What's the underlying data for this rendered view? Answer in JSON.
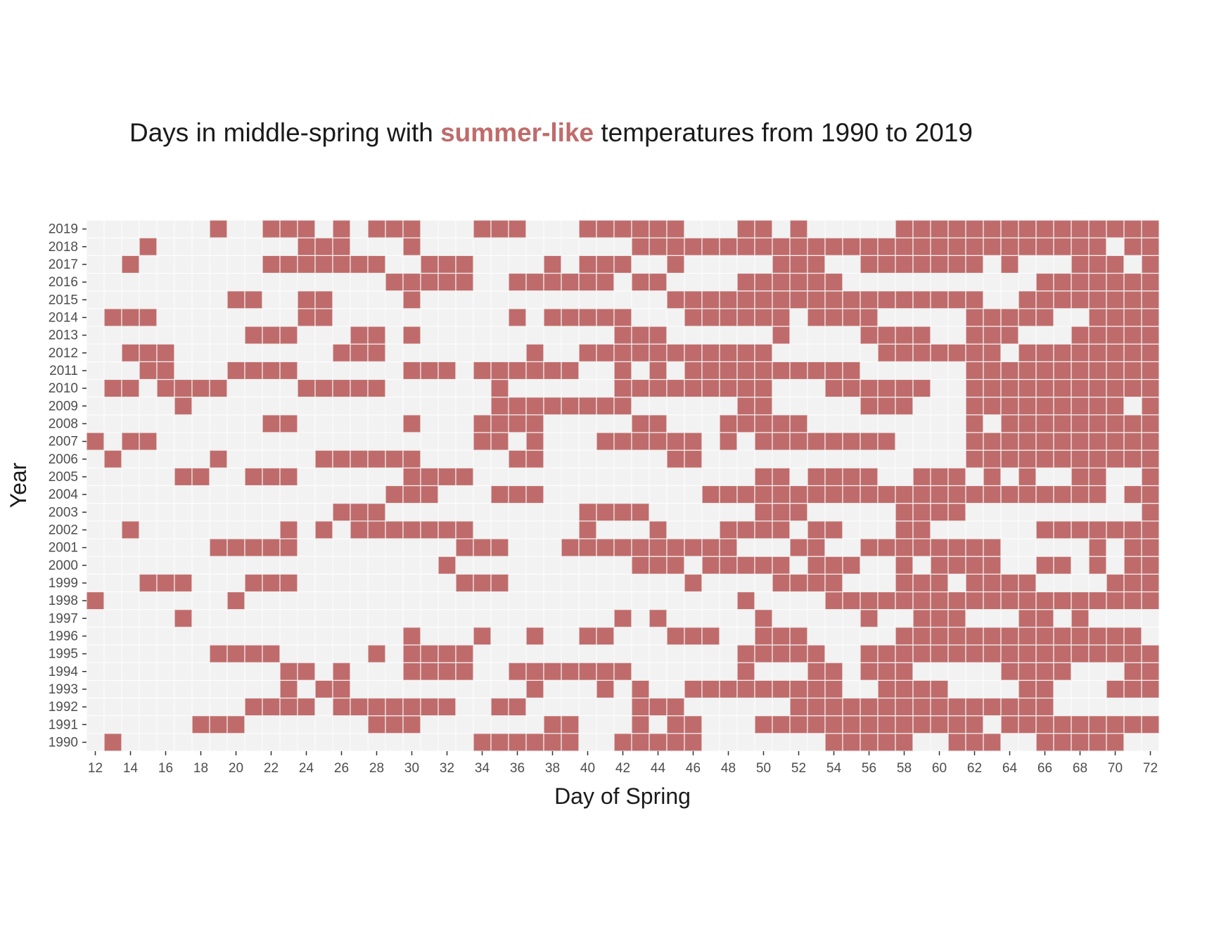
{
  "colors": {
    "accent": "#c06b6b",
    "panel_background": "#f2f2f2",
    "grid": "#ffffff",
    "text": "#1a1a1a",
    "tick_text": "#4d4d4d"
  },
  "chart_data": {
    "type": "heatmap",
    "title": {
      "before": "Days in middle-spring with ",
      "highlight": "summer-like",
      "after": " temperatures from 1990 to 2019"
    },
    "xlabel": "Day of Spring",
    "ylabel": "Year",
    "xlim": [
      12,
      72
    ],
    "ylim": [
      1990,
      2019
    ],
    "x_ticks": [
      12,
      14,
      16,
      18,
      20,
      22,
      24,
      26,
      28,
      30,
      32,
      34,
      36,
      38,
      40,
      42,
      44,
      46,
      48,
      50,
      52,
      54,
      56,
      58,
      60,
      62,
      64,
      66,
      68,
      70,
      72
    ],
    "y_ticks": [
      1990,
      1991,
      1992,
      1993,
      1994,
      1995,
      1996,
      1997,
      1998,
      1999,
      2000,
      2001,
      2002,
      2003,
      2004,
      2005,
      2006,
      2007,
      2008,
      2009,
      2010,
      2011,
      2012,
      2013,
      2014,
      2015,
      2016,
      2017,
      2018,
      2019
    ],
    "grid": true,
    "legend": "none",
    "summer_like_days": {
      "2019": [
        19,
        22,
        23,
        24,
        26,
        28,
        29,
        30,
        34,
        35,
        36,
        40,
        41,
        42,
        43,
        44,
        45,
        49,
        50,
        52,
        58,
        59,
        60,
        61,
        62,
        63,
        64,
        65,
        66,
        67,
        68,
        69,
        70,
        71,
        72
      ],
      "2018": [
        15,
        24,
        25,
        26,
        30,
        43,
        44,
        45,
        46,
        47,
        48,
        49,
        50,
        51,
        52,
        53,
        54,
        55,
        56,
        57,
        58,
        59,
        60,
        61,
        62,
        63,
        64,
        65,
        66,
        67,
        68,
        69,
        71,
        72
      ],
      "2017": [
        14,
        22,
        23,
        24,
        25,
        26,
        27,
        28,
        31,
        32,
        33,
        38,
        40,
        41,
        42,
        45,
        51,
        52,
        53,
        56,
        57,
        58,
        59,
        60,
        61,
        62,
        64,
        68,
        69,
        70,
        72
      ],
      "2016": [
        29,
        30,
        31,
        32,
        33,
        36,
        37,
        38,
        39,
        40,
        41,
        43,
        44,
        49,
        50,
        51,
        52,
        53,
        54,
        66,
        67,
        68,
        69,
        70,
        71,
        72
      ],
      "2015": [
        20,
        21,
        24,
        25,
        30,
        45,
        46,
        47,
        48,
        49,
        50,
        51,
        52,
        53,
        54,
        55,
        56,
        57,
        58,
        59,
        60,
        61,
        62,
        65,
        66,
        67,
        68,
        69,
        70,
        71,
        72
      ],
      "2014": [
        13,
        14,
        15,
        24,
        25,
        36,
        38,
        39,
        40,
        41,
        42,
        46,
        47,
        48,
        49,
        50,
        51,
        53,
        54,
        55,
        56,
        62,
        63,
        64,
        65,
        66,
        69,
        70,
        71,
        72
      ],
      "2013": [
        21,
        22,
        23,
        27,
        28,
        30,
        42,
        43,
        44,
        51,
        56,
        57,
        58,
        59,
        62,
        63,
        64,
        68,
        69,
        70,
        71,
        72
      ],
      "2012": [
        14,
        15,
        16,
        26,
        27,
        28,
        37,
        40,
        41,
        42,
        43,
        44,
        45,
        46,
        47,
        48,
        49,
        50,
        57,
        58,
        59,
        60,
        61,
        62,
        63,
        65,
        66,
        67,
        68,
        69,
        70,
        71,
        72
      ],
      "2011": [
        15,
        16,
        20,
        21,
        22,
        23,
        30,
        31,
        32,
        34,
        35,
        36,
        37,
        38,
        39,
        42,
        44,
        46,
        47,
        48,
        49,
        50,
        51,
        52,
        53,
        54,
        55,
        62,
        63,
        64,
        65,
        66,
        67,
        68,
        69,
        70,
        71,
        72
      ],
      "2010": [
        13,
        14,
        16,
        17,
        18,
        19,
        24,
        25,
        26,
        27,
        28,
        35,
        42,
        43,
        44,
        45,
        46,
        47,
        48,
        49,
        50,
        54,
        55,
        56,
        57,
        58,
        59,
        62,
        63,
        64,
        65,
        66,
        67,
        68,
        69,
        70,
        71,
        72
      ],
      "2009": [
        17,
        35,
        36,
        37,
        38,
        39,
        40,
        41,
        42,
        49,
        50,
        56,
        57,
        58,
        62,
        63,
        64,
        65,
        66,
        67,
        68,
        69,
        70,
        72
      ],
      "2008": [
        22,
        23,
        30,
        34,
        35,
        36,
        37,
        43,
        44,
        48,
        49,
        50,
        51,
        52,
        62,
        64,
        65,
        66,
        67,
        68,
        69,
        70,
        71,
        72
      ],
      "2007": [
        12,
        14,
        15,
        34,
        35,
        37,
        41,
        42,
        43,
        44,
        45,
        46,
        48,
        50,
        51,
        52,
        53,
        54,
        55,
        56,
        57,
        62,
        63,
        64,
        65,
        66,
        67,
        68,
        69,
        70,
        71,
        72
      ],
      "2006": [
        13,
        19,
        25,
        26,
        27,
        28,
        29,
        30,
        36,
        37,
        45,
        46,
        62,
        63,
        64,
        65,
        66,
        67,
        68,
        69,
        70,
        71,
        72
      ],
      "2005": [
        17,
        18,
        21,
        22,
        23,
        30,
        31,
        32,
        33,
        50,
        51,
        53,
        54,
        55,
        56,
        59,
        60,
        61,
        63,
        65,
        68,
        69,
        72
      ],
      "2004": [
        29,
        30,
        31,
        35,
        36,
        37,
        47,
        48,
        49,
        50,
        51,
        52,
        53,
        54,
        55,
        56,
        57,
        58,
        59,
        60,
        61,
        62,
        63,
        64,
        65,
        66,
        67,
        68,
        69,
        71,
        72
      ],
      "2003": [
        26,
        27,
        28,
        40,
        41,
        42,
        43,
        50,
        51,
        52,
        58,
        59,
        60,
        61,
        72
      ],
      "2002": [
        14,
        23,
        25,
        27,
        28,
        29,
        30,
        31,
        32,
        33,
        40,
        44,
        48,
        49,
        50,
        51,
        53,
        54,
        58,
        59,
        66,
        67,
        68,
        69,
        70,
        71,
        72
      ],
      "2001": [
        19,
        20,
        21,
        22,
        23,
        33,
        34,
        35,
        39,
        40,
        41,
        42,
        43,
        44,
        45,
        46,
        47,
        48,
        52,
        53,
        56,
        57,
        58,
        59,
        60,
        61,
        62,
        63,
        69,
        71,
        72
      ],
      "2000": [
        32,
        43,
        44,
        45,
        47,
        48,
        49,
        50,
        51,
        53,
        54,
        55,
        58,
        60,
        61,
        62,
        63,
        66,
        67,
        69,
        71,
        72
      ],
      "1999": [
        15,
        16,
        17,
        21,
        22,
        23,
        33,
        34,
        35,
        46,
        51,
        52,
        53,
        54,
        58,
        59,
        60,
        62,
        63,
        64,
        65,
        70,
        71,
        72
      ],
      "1998": [
        12,
        20,
        49,
        54,
        55,
        56,
        57,
        58,
        59,
        60,
        61,
        62,
        63,
        64,
        65,
        66,
        67,
        68,
        69,
        70,
        71,
        72
      ],
      "1997": [
        17,
        42,
        44,
        50,
        56,
        59,
        60,
        61,
        65,
        66,
        68
      ],
      "1996": [
        30,
        34,
        37,
        40,
        41,
        45,
        46,
        47,
        50,
        51,
        52,
        58,
        59,
        60,
        61,
        62,
        63,
        64,
        65,
        66,
        67,
        68,
        69,
        70,
        71
      ],
      "1995": [
        19,
        20,
        21,
        22,
        28,
        30,
        31,
        32,
        33,
        49,
        50,
        51,
        52,
        53,
        56,
        57,
        58,
        59,
        60,
        61,
        62,
        63,
        64,
        65,
        66,
        67,
        68,
        69,
        70,
        71,
        72
      ],
      "1994": [
        23,
        24,
        26,
        30,
        31,
        32,
        33,
        36,
        37,
        38,
        39,
        40,
        41,
        42,
        49,
        53,
        54,
        56,
        57,
        58,
        64,
        65,
        66,
        67,
        71,
        72
      ],
      "1993": [
        23,
        25,
        26,
        37,
        41,
        43,
        46,
        47,
        48,
        49,
        50,
        51,
        52,
        53,
        54,
        57,
        58,
        59,
        60,
        65,
        66,
        70,
        71,
        72
      ],
      "1992": [
        21,
        22,
        23,
        24,
        26,
        27,
        28,
        29,
        30,
        31,
        32,
        35,
        36,
        43,
        44,
        45,
        52,
        53,
        54,
        55,
        56,
        57,
        58,
        59,
        60,
        61,
        62,
        63,
        64,
        65,
        66
      ],
      "1991": [
        18,
        19,
        20,
        28,
        29,
        30,
        38,
        39,
        43,
        45,
        46,
        50,
        51,
        52,
        53,
        54,
        55,
        56,
        57,
        58,
        59,
        60,
        61,
        62,
        64,
        65,
        66,
        67,
        68,
        69,
        70,
        71,
        72
      ],
      "1990": [
        13,
        34,
        35,
        36,
        37,
        38,
        39,
        42,
        43,
        44,
        45,
        46,
        54,
        55,
        56,
        57,
        58,
        61,
        62,
        63,
        66,
        67,
        68,
        69,
        70
      ]
    }
  }
}
